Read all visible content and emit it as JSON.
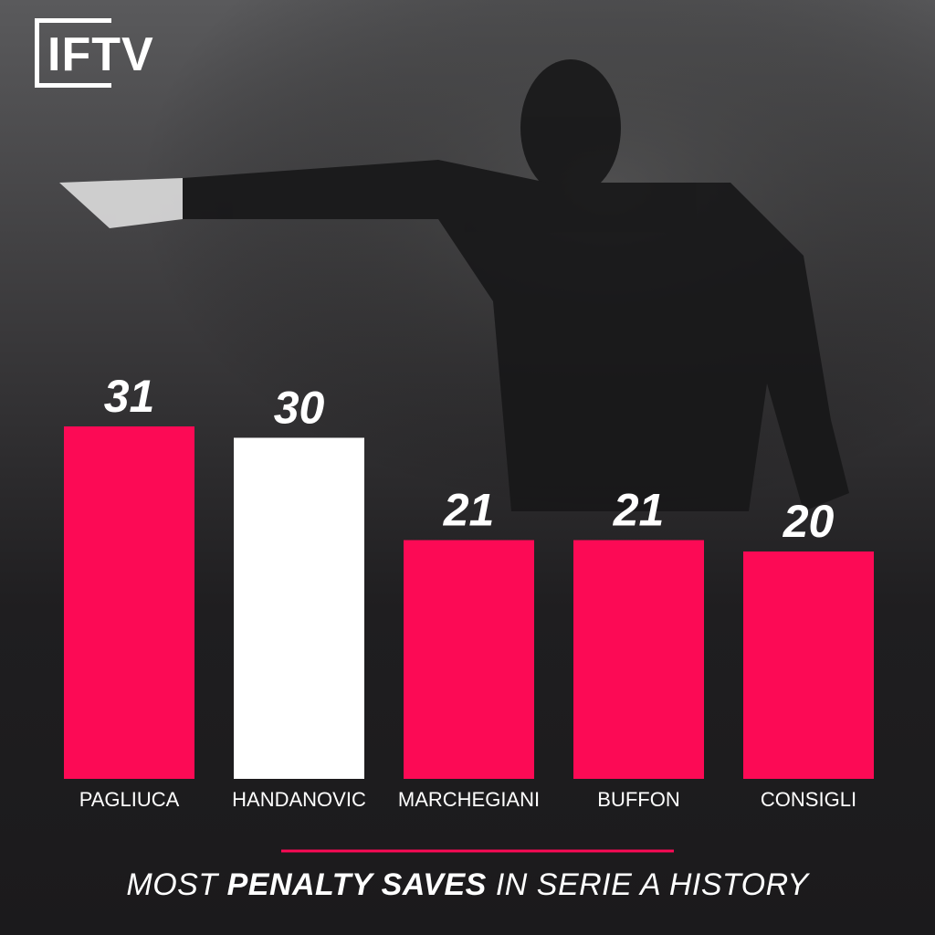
{
  "brand": "IFTV",
  "chart_data": {
    "type": "bar",
    "title": [
      {
        "text": "MOST",
        "bold": false
      },
      {
        "text": "PENALTY SAVES",
        "bold": true
      },
      {
        "text": "IN SERIE A HISTORY",
        "bold": false
      }
    ],
    "categories": [
      "PAGLIUCA",
      "HANDANOVIC",
      "MARCHEGIANI",
      "BUFFON",
      "CONSIGLI"
    ],
    "values": [
      31,
      30,
      21,
      21,
      20
    ],
    "colors": [
      "#fc0a55",
      "#ffffff",
      "#fc0a55",
      "#fc0a55",
      "#fc0a55"
    ]
  }
}
